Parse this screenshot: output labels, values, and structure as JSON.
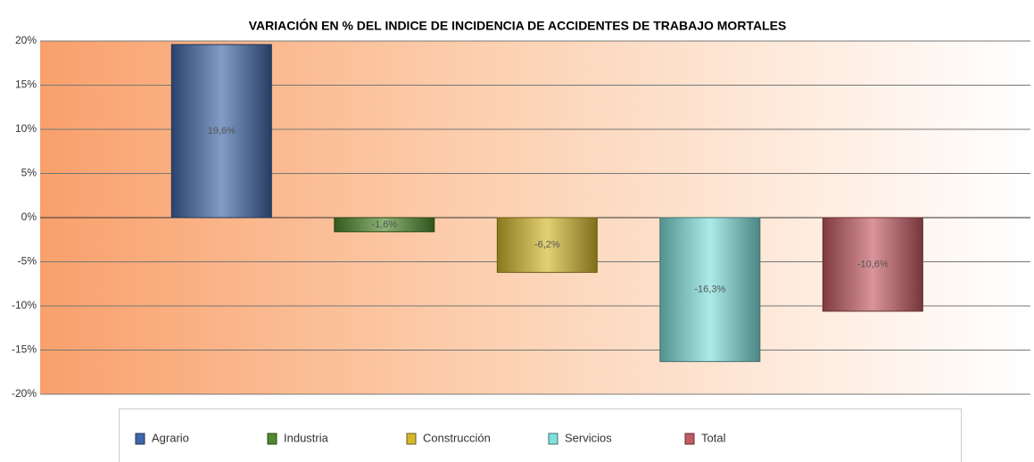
{
  "chart_data": {
    "type": "bar",
    "title": "VARIACIÓN EN % DEL INDICE DE INCIDENCIA DE ACCIDENTES DE TRABAJO MORTALES",
    "categories": [
      null
    ],
    "series": [
      {
        "name": "Agrario",
        "color": "#3f67a8",
        "values": [
          19.6
        ],
        "value_labels": [
          "19,6%"
        ]
      },
      {
        "name": "Industria",
        "color": "#4f8a2e",
        "values": [
          -1.6
        ],
        "value_labels": [
          "-1,6%"
        ]
      },
      {
        "name": "Construcción",
        "color": "#d4b82c",
        "values": [
          -6.2
        ],
        "value_labels": [
          "-6,2%"
        ]
      },
      {
        "name": "Servicios",
        "color": "#7fe0dc",
        "values": [
          -16.3
        ],
        "value_labels": [
          "-16,3%"
        ]
      },
      {
        "name": "Total",
        "color": "#c45a63",
        "values": [
          -10.6
        ],
        "value_labels": [
          "-10,6%"
        ]
      }
    ],
    "ylim": [
      -20,
      20
    ],
    "yticks": [
      {
        "value": -20,
        "label": "-20%"
      },
      {
        "value": -15,
        "label": "-15%"
      },
      {
        "value": -10,
        "label": "-10%"
      },
      {
        "value": -5,
        "label": "-5%"
      },
      {
        "value": 0,
        "label": "0%"
      },
      {
        "value": 5,
        "label": "5%"
      },
      {
        "value": 10,
        "label": "10%"
      },
      {
        "value": 15,
        "label": "15%"
      },
      {
        "value": 20,
        "label": "20%"
      }
    ],
    "grid": true,
    "legend": "bottom"
  }
}
